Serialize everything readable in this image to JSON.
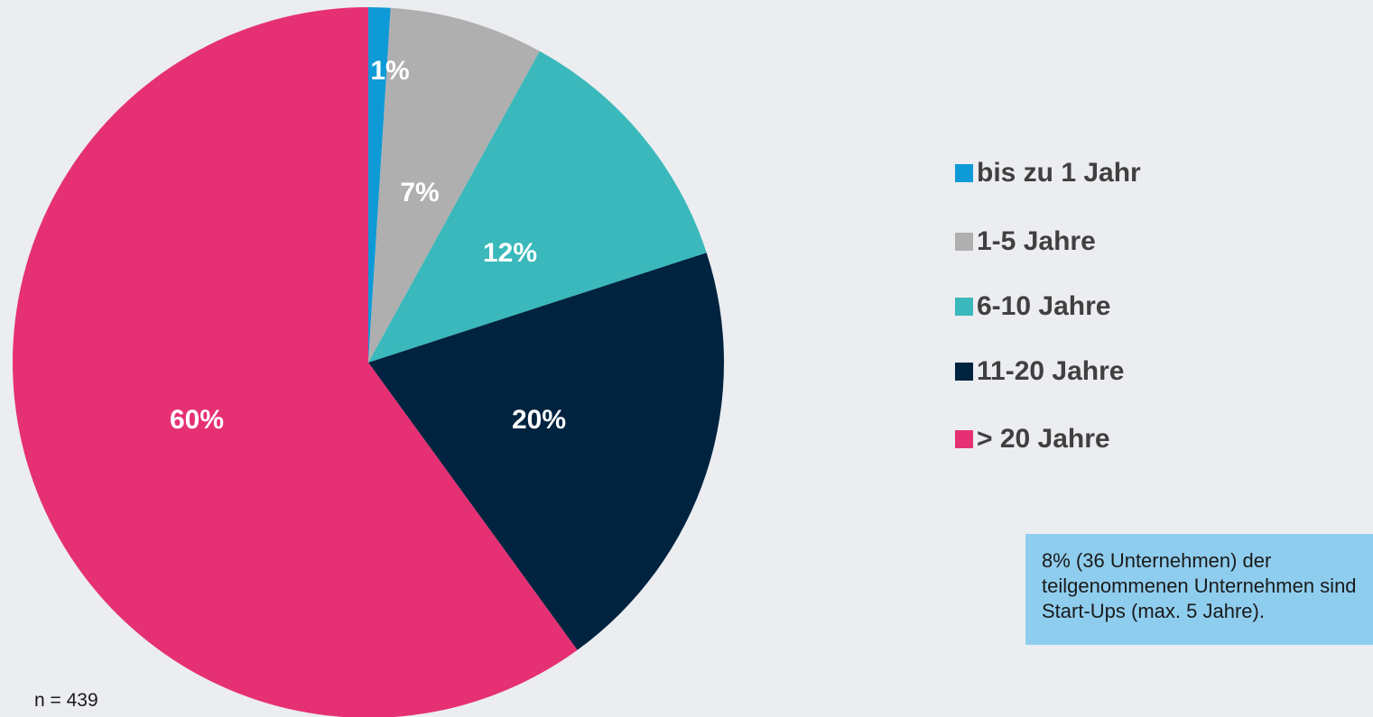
{
  "chart_data": {
    "type": "pie",
    "categories": [
      "bis zu 1 Jahr",
      "1-5 Jahre",
      "6-10 Jahre",
      "11-20 Jahre",
      "> 20 Jahre"
    ],
    "values": [
      1,
      7,
      12,
      20,
      60
    ],
    "value_labels": [
      "1%",
      "7%",
      "12%",
      "20%",
      "60%"
    ],
    "colors": [
      "#0e9ad7",
      "#afafaf",
      "#3ab8bb",
      "#002340",
      "#e63074"
    ],
    "legend": "right",
    "annotation": "8% (36 Unternehmen) der teilgenommenen Unternehmen sind Start-Ups (max. 5 Jahre).",
    "note": "n = 439"
  }
}
